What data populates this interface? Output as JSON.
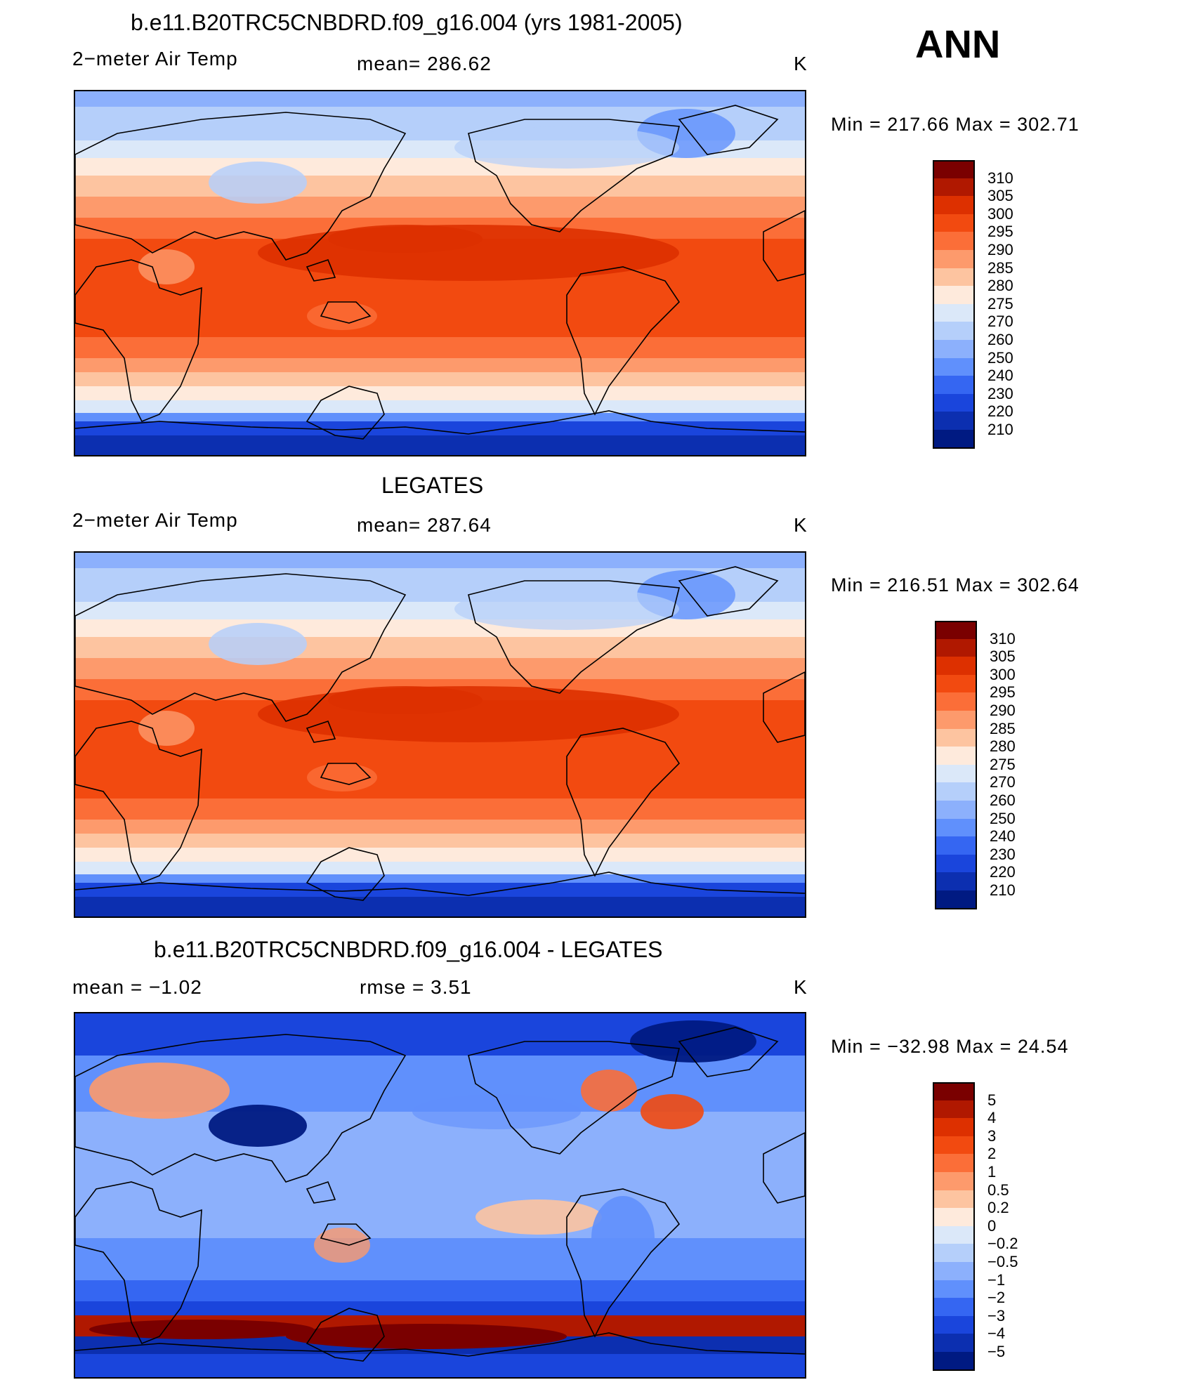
{
  "season": "ANN",
  "panels": [
    {
      "title": "b.e11.B20TRC5CNBDRD.f09_g16.004 (yrs 1981-2005)",
      "variable": "2−meter Air Temp",
      "stat": "mean=  286.62",
      "units": "K",
      "minmax": "Min  =  217.66  Max  =  302.71",
      "colorbar": [
        "310",
        "305",
        "300",
        "295",
        "290",
        "285",
        "280",
        "275",
        "270",
        "260",
        "250",
        "240",
        "230",
        "220",
        "210"
      ],
      "kind": "abs"
    },
    {
      "title": "LEGATES",
      "variable": "2−meter Air Temp",
      "stat": "mean=  287.64",
      "units": "K",
      "minmax": "Min  =  216.51  Max  =  302.64",
      "colorbar": [
        "310",
        "305",
        "300",
        "295",
        "290",
        "285",
        "280",
        "275",
        "270",
        "260",
        "250",
        "240",
        "230",
        "220",
        "210"
      ],
      "kind": "abs"
    },
    {
      "title": "b.e11.B20TRC5CNBDRD.f09_g16.004 - LEGATES",
      "variable": "mean  =    −1.02",
      "stat": "rmse  =     3.51",
      "units": "K",
      "minmax": "Min  =  −32.98  Max  =    24.54",
      "colorbar": [
        "5",
        "4",
        "3",
        "2",
        "1",
        "0.5",
        "0.2",
        "0",
        "−0.2",
        "−0.5",
        "−1",
        "−2",
        "−3",
        "−4",
        "−5"
      ],
      "kind": "diff"
    }
  ],
  "colors": {
    "palette": [
      "#7a0000",
      "#b01800",
      "#dd3000",
      "#f24a10",
      "#fb6e38",
      "#fd9a6c",
      "#fdc4a0",
      "#feeadc",
      "#dbe8f9",
      "#b5cffa",
      "#8cb0fc",
      "#6090fc",
      "#3566f2",
      "#1a45dc",
      "#0c2fb0",
      "#001a82"
    ]
  }
}
